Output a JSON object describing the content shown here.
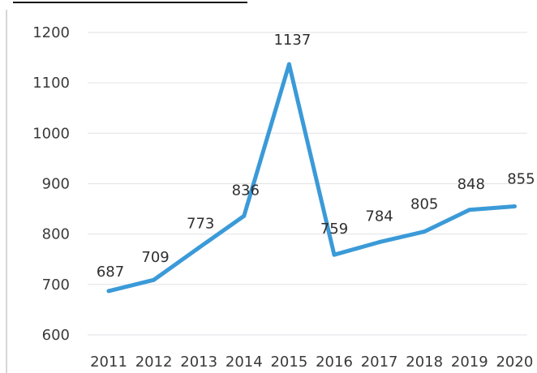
{
  "chart_data": {
    "type": "line",
    "title": "",
    "xlabel": "",
    "ylabel": "",
    "categories": [
      "2011",
      "2012",
      "2013",
      "2014",
      "2015",
      "2016",
      "2017",
      "2018",
      "2019",
      "2020"
    ],
    "series": [
      {
        "values": [
          687,
          709,
          773,
          836,
          1137,
          759,
          784,
          805,
          848,
          855
        ]
      }
    ],
    "data_labels": [
      "687",
      "709",
      "773",
      "836",
      "1137",
      "759",
      "784",
      "805",
      "848",
      "855"
    ],
    "y_ticks": [
      "600",
      "700",
      "800",
      "900",
      "1000",
      "1100",
      "1200"
    ],
    "ylim": [
      600,
      1200
    ],
    "grid": true,
    "legend": "none",
    "line_color": "#3b9ad8"
  }
}
